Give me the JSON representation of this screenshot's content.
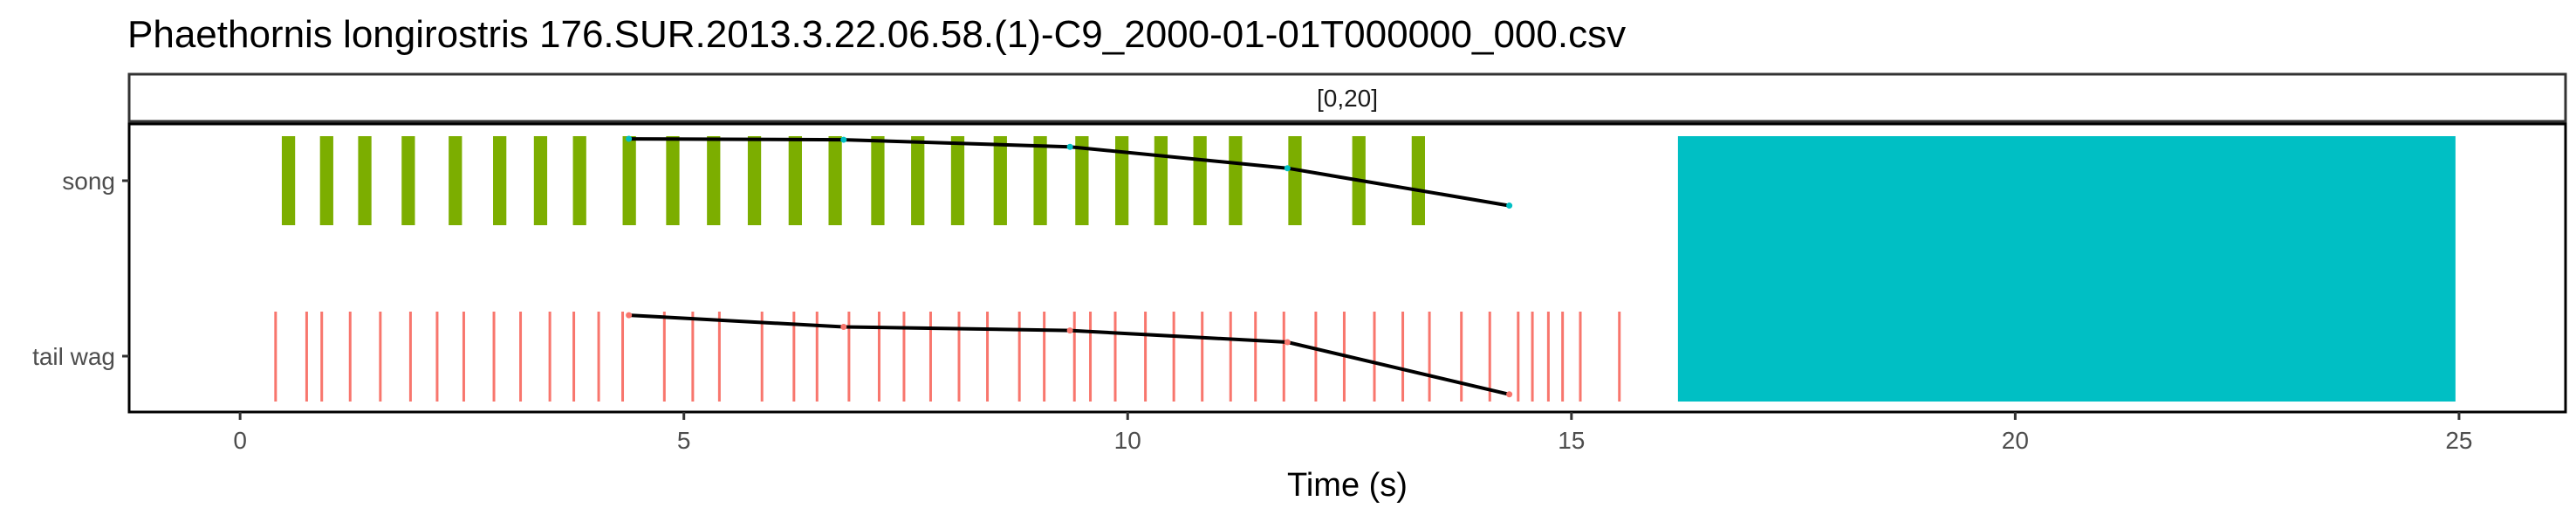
{
  "chart_data": {
    "type": "timeline",
    "title": "Phaethornis longirostris   176.SUR.2013.3.22.06.58.(1)-C9_2000-01-01T000000_000.csv",
    "facet_label": "[0,20]",
    "xlabel": "Time (s)",
    "ylabel": "",
    "xlim": [
      -1.25,
      26.2
    ],
    "x_ticks": [
      0,
      5,
      10,
      15,
      20,
      25
    ],
    "x_tick_labels": [
      "0",
      "5",
      "10",
      "15",
      "20",
      "25"
    ],
    "categories": [
      "song",
      "tail wag"
    ],
    "grid": false,
    "legend": "none",
    "colors": {
      "song": "#7CAE00",
      "tail_wag": "#F8766D",
      "block": "#00BFC4",
      "line": "#000000",
      "panel_border": "#000000"
    },
    "song_events": [
      {
        "start": 0.47,
        "end": 0.62
      },
      {
        "start": 0.9,
        "end": 1.05
      },
      {
        "start": 1.33,
        "end": 1.48
      },
      {
        "start": 1.82,
        "end": 1.97
      },
      {
        "start": 2.35,
        "end": 2.5
      },
      {
        "start": 2.85,
        "end": 3.0
      },
      {
        "start": 3.31,
        "end": 3.46
      },
      {
        "start": 3.75,
        "end": 3.9
      },
      {
        "start": 4.31,
        "end": 4.46
      },
      {
        "start": 4.8,
        "end": 4.95
      },
      {
        "start": 5.26,
        "end": 5.41
      },
      {
        "start": 5.72,
        "end": 5.87
      },
      {
        "start": 6.18,
        "end": 6.33
      },
      {
        "start": 6.63,
        "end": 6.78
      },
      {
        "start": 7.11,
        "end": 7.26
      },
      {
        "start": 7.56,
        "end": 7.71
      },
      {
        "start": 8.01,
        "end": 8.16
      },
      {
        "start": 8.49,
        "end": 8.64
      },
      {
        "start": 8.94,
        "end": 9.09
      },
      {
        "start": 9.41,
        "end": 9.56
      },
      {
        "start": 9.86,
        "end": 10.01
      },
      {
        "start": 10.3,
        "end": 10.45
      },
      {
        "start": 10.74,
        "end": 10.89
      },
      {
        "start": 11.14,
        "end": 11.29
      },
      {
        "start": 11.81,
        "end": 11.96
      },
      {
        "start": 12.53,
        "end": 12.68
      },
      {
        "start": 13.2,
        "end": 13.35
      }
    ],
    "tail_wag_events": [
      0.4,
      0.75,
      0.92,
      1.24,
      1.58,
      1.92,
      2.22,
      2.52,
      2.86,
      3.16,
      3.49,
      3.76,
      4.04,
      4.31,
      4.78,
      5.1,
      5.4,
      5.88,
      6.24,
      6.5,
      6.86,
      7.2,
      7.48,
      7.78,
      8.1,
      8.42,
      8.78,
      9.06,
      9.4,
      9.58,
      9.86,
      10.2,
      10.52,
      10.84,
      11.16,
      11.44,
      11.76,
      12.12,
      12.44,
      12.78,
      13.1,
      13.4,
      13.76,
      14.08,
      14.4,
      14.56,
      14.74,
      14.9,
      15.1,
      15.54
    ],
    "block": {
      "start": 16.2,
      "end": 24.96,
      "rows": [
        "song",
        "tail wag"
      ]
    },
    "lines": [
      {
        "row": "song",
        "x": [
          4.38,
          6.8,
          9.35,
          11.8,
          14.3
        ],
        "y": [
          0.97,
          0.96,
          0.88,
          0.64,
          0.22
        ]
      },
      {
        "row": "tail wag",
        "x": [
          4.38,
          6.8,
          9.35,
          11.8,
          14.3
        ],
        "y": [
          0.96,
          0.83,
          0.79,
          0.66,
          0.08
        ]
      }
    ]
  }
}
